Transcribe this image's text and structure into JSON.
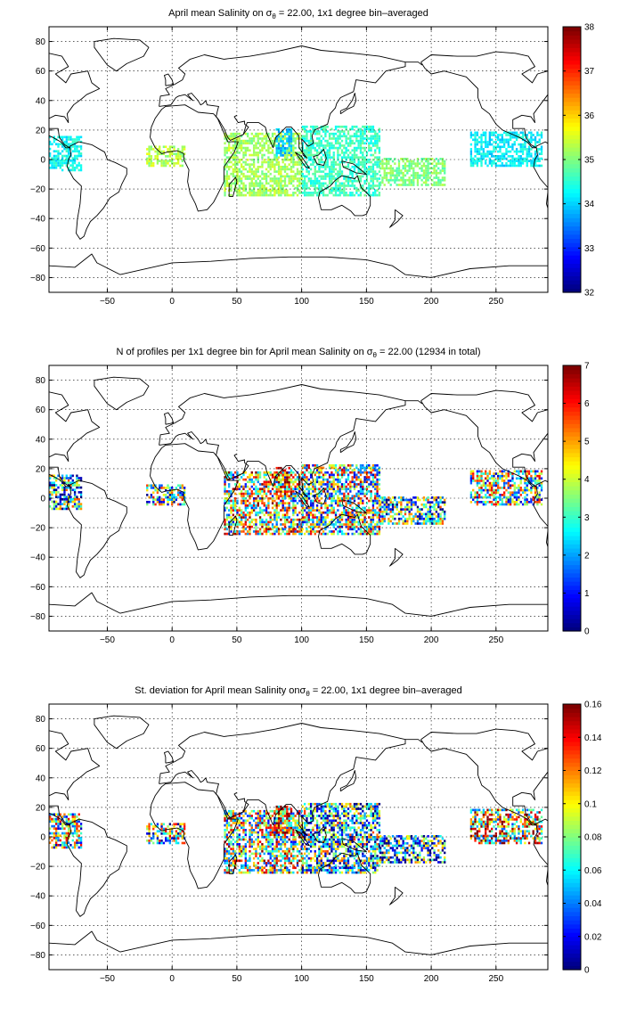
{
  "colormap": "jet",
  "chart_data": [
    {
      "type": "heatmap",
      "title_pre": "April mean Salinity on ",
      "title_sym": "σ",
      "title_sub": "θ",
      "title_post": " = 22.00, 1x1 degree bin–averaged",
      "xlim": [
        -95,
        290
      ],
      "ylim": [
        -90,
        90
      ],
      "xticks": [
        -50,
        0,
        50,
        100,
        150,
        200,
        250
      ],
      "yticks": [
        -80,
        -60,
        -40,
        -20,
        0,
        20,
        40,
        60,
        80
      ],
      "colorbar": {
        "min": 32,
        "max": 38,
        "ticks": [
          32,
          33,
          34,
          35,
          36,
          37,
          38
        ]
      },
      "grid": true,
      "data_regions": [
        {
          "lon": [
            -95,
            -70
          ],
          "lat": [
            -8,
            15
          ],
          "value": 34.3
        },
        {
          "lon": [
            -20,
            10
          ],
          "lat": [
            -5,
            8
          ],
          "value": 35.3
        },
        {
          "lon": [
            40,
            100
          ],
          "lat": [
            -25,
            18
          ],
          "value": 35.2
        },
        {
          "lon": [
            80,
            92
          ],
          "lat": [
            2,
            20
          ],
          "value": 33.9
        },
        {
          "lon": [
            100,
            160
          ],
          "lat": [
            -25,
            22
          ],
          "value": 34.6
        },
        {
          "lon": [
            160,
            210
          ],
          "lat": [
            -18,
            0
          ],
          "value": 35.0
        },
        {
          "lon": [
            230,
            285
          ],
          "lat": [
            -5,
            18
          ],
          "value": 34.2
        }
      ]
    },
    {
      "type": "heatmap",
      "title_pre": "N of profiles per 1x1 degree bin for April mean Salinity on ",
      "title_sym": "σ",
      "title_sub": "θ",
      "title_post": " = 22.00 (12934 in total)",
      "xlim": [
        -95,
        290
      ],
      "ylim": [
        -90,
        90
      ],
      "xticks": [
        -50,
        0,
        50,
        100,
        150,
        200,
        250
      ],
      "yticks": [
        -80,
        -60,
        -40,
        -20,
        0,
        20,
        40,
        60,
        80
      ],
      "colorbar": {
        "min": 0,
        "max": 7,
        "ticks": [
          0,
          1,
          2,
          3,
          4,
          5,
          6,
          7
        ]
      },
      "grid": true,
      "data_regions": [
        {
          "lon": [
            -95,
            -70
          ],
          "lat": [
            -8,
            15
          ],
          "value": 2.5
        },
        {
          "lon": [
            -20,
            10
          ],
          "lat": [
            -5,
            8
          ],
          "value": 3.0
        },
        {
          "lon": [
            40,
            100
          ],
          "lat": [
            -25,
            18
          ],
          "value": 4.0
        },
        {
          "lon": [
            80,
            92
          ],
          "lat": [
            2,
            20
          ],
          "value": 5.5
        },
        {
          "lon": [
            100,
            160
          ],
          "lat": [
            -25,
            22
          ],
          "value": 3.5
        },
        {
          "lon": [
            160,
            210
          ],
          "lat": [
            -18,
            0
          ],
          "value": 2.5
        },
        {
          "lon": [
            230,
            285
          ],
          "lat": [
            -5,
            18
          ],
          "value": 3.5
        }
      ]
    },
    {
      "type": "heatmap",
      "title_pre": "St. deviation for April mean Salinity on",
      "title_sym": "σ",
      "title_sub": "θ",
      "title_post": " = 22.00, 1x1 degree bin–averaged",
      "xlim": [
        -95,
        290
      ],
      "ylim": [
        -90,
        90
      ],
      "xticks": [
        -50,
        0,
        50,
        100,
        150,
        200,
        250
      ],
      "yticks": [
        -80,
        -60,
        -40,
        -20,
        0,
        20,
        40,
        60,
        80
      ],
      "colorbar": {
        "min": 0,
        "max": 0.16,
        "ticks": [
          0,
          0.02,
          0.04,
          0.06,
          0.08,
          0.1,
          0.12,
          0.14,
          0.16
        ]
      },
      "grid": true,
      "data_regions": [
        {
          "lon": [
            -95,
            -70
          ],
          "lat": [
            -8,
            15
          ],
          "value": 0.08
        },
        {
          "lon": [
            -20,
            10
          ],
          "lat": [
            -5,
            8
          ],
          "value": 0.07
        },
        {
          "lon": [
            40,
            100
          ],
          "lat": [
            -25,
            18
          ],
          "value": 0.09
        },
        {
          "lon": [
            80,
            92
          ],
          "lat": [
            2,
            20
          ],
          "value": 0.12
        },
        {
          "lon": [
            100,
            160
          ],
          "lat": [
            -25,
            22
          ],
          "value": 0.06
        },
        {
          "lon": [
            160,
            210
          ],
          "lat": [
            -18,
            0
          ],
          "value": 0.05
        },
        {
          "lon": [
            230,
            285
          ],
          "lat": [
            -5,
            18
          ],
          "value": 0.1
        }
      ]
    }
  ]
}
